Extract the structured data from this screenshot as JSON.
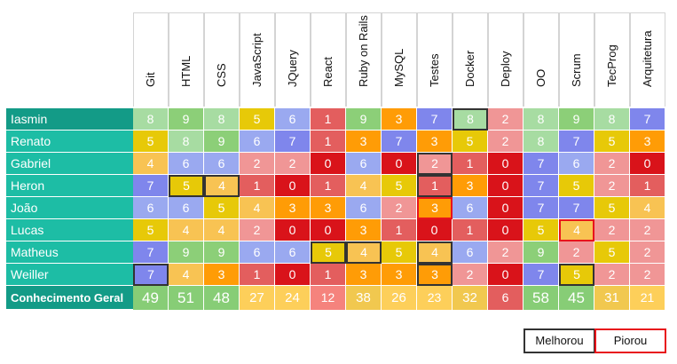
{
  "columns": [
    "Git",
    "HTML",
    "CSS",
    "JavaScript",
    "JQuery",
    "React",
    "Ruby on Rails",
    "MySQL",
    "Testes",
    "Docker",
    "Deploy",
    "OO",
    "Scrum",
    "TecProg",
    "Arquitetura"
  ],
  "rows": [
    {
      "name": "Iasmin",
      "values": [
        8,
        9,
        8,
        5,
        6,
        1,
        9,
        3,
        7,
        8,
        2,
        8,
        9,
        8,
        7
      ],
      "highlights": [
        null,
        null,
        null,
        null,
        null,
        null,
        null,
        null,
        null,
        "better",
        null,
        null,
        null,
        null,
        null
      ]
    },
    {
      "name": "Renato",
      "values": [
        5,
        8,
        9,
        6,
        7,
        1,
        3,
        7,
        3,
        5,
        2,
        8,
        7,
        5,
        3
      ],
      "highlights": [
        null,
        null,
        null,
        null,
        null,
        null,
        null,
        null,
        null,
        null,
        null,
        null,
        null,
        null,
        null
      ]
    },
    {
      "name": "Gabriel",
      "values": [
        4,
        6,
        6,
        2,
        2,
        0,
        6,
        0,
        2,
        1,
        0,
        7,
        6,
        2,
        0
      ],
      "highlights": [
        null,
        null,
        null,
        null,
        null,
        null,
        null,
        null,
        "better",
        null,
        null,
        null,
        null,
        null,
        null
      ]
    },
    {
      "name": "Heron",
      "values": [
        7,
        5,
        4,
        1,
        0,
        1,
        4,
        5,
        1,
        3,
        0,
        7,
        5,
        2,
        1
      ],
      "highlights": [
        null,
        "better",
        "better",
        null,
        null,
        null,
        null,
        null,
        "better",
        null,
        null,
        null,
        null,
        null,
        null
      ]
    },
    {
      "name": "João",
      "values": [
        6,
        6,
        5,
        4,
        3,
        3,
        6,
        2,
        3,
        6,
        0,
        7,
        7,
        5,
        4
      ],
      "highlights": [
        null,
        null,
        null,
        null,
        null,
        null,
        null,
        null,
        "worse",
        null,
        null,
        null,
        null,
        null,
        null
      ]
    },
    {
      "name": "Lucas",
      "values": [
        5,
        4,
        4,
        2,
        0,
        0,
        3,
        1,
        0,
        1,
        0,
        5,
        4,
        2,
        2
      ],
      "highlights": [
        null,
        null,
        null,
        null,
        null,
        null,
        null,
        null,
        null,
        null,
        null,
        null,
        "worse",
        null,
        null
      ]
    },
    {
      "name": "Matheus",
      "values": [
        7,
        9,
        9,
        6,
        6,
        5,
        4,
        5,
        4,
        6,
        2,
        9,
        2,
        5,
        2
      ],
      "highlights": [
        null,
        null,
        null,
        null,
        null,
        "better",
        "better",
        null,
        "better",
        null,
        null,
        null,
        null,
        null,
        null
      ]
    },
    {
      "name": "Weiller",
      "values": [
        7,
        4,
        3,
        1,
        0,
        1,
        3,
        3,
        3,
        2,
        0,
        7,
        5,
        2,
        2
      ],
      "highlights": [
        "better",
        null,
        null,
        null,
        null,
        null,
        null,
        null,
        "better",
        null,
        null,
        null,
        "better",
        null,
        null
      ]
    }
  ],
  "total": {
    "label": "Conhecimento Geral",
    "values": [
      49,
      51,
      48,
      27,
      24,
      12,
      38,
      26,
      23,
      32,
      6,
      58,
      45,
      31,
      21
    ]
  },
  "legend": {
    "better": "Melhorou",
    "worse": "Piorou"
  },
  "colors": {
    "name_bg_first": "#139b87",
    "name_bg": "#1dbda5",
    "highlight_better": "#333333",
    "highlight_worse": "#e8141b",
    "scale": {
      "0": "#d9131a",
      "1": "#e35e5e",
      "2": "#f09696",
      "3": "#ff9c06",
      "4": "#f8c353",
      "5": "#e7c908",
      "6": "#9aa9f0",
      "7": "#7f86ec",
      "8": "#a7dca2",
      "9": "#8ccf78"
    },
    "total_scale": [
      {
        "min": 45,
        "color": "#87cd76"
      },
      {
        "min": 30,
        "color": "#f1c84f"
      },
      {
        "min": 15,
        "color": "#fdcf5a"
      },
      {
        "min": 10,
        "color": "#f5837d"
      },
      {
        "min": 0,
        "color": "#e35e5e"
      }
    ]
  }
}
